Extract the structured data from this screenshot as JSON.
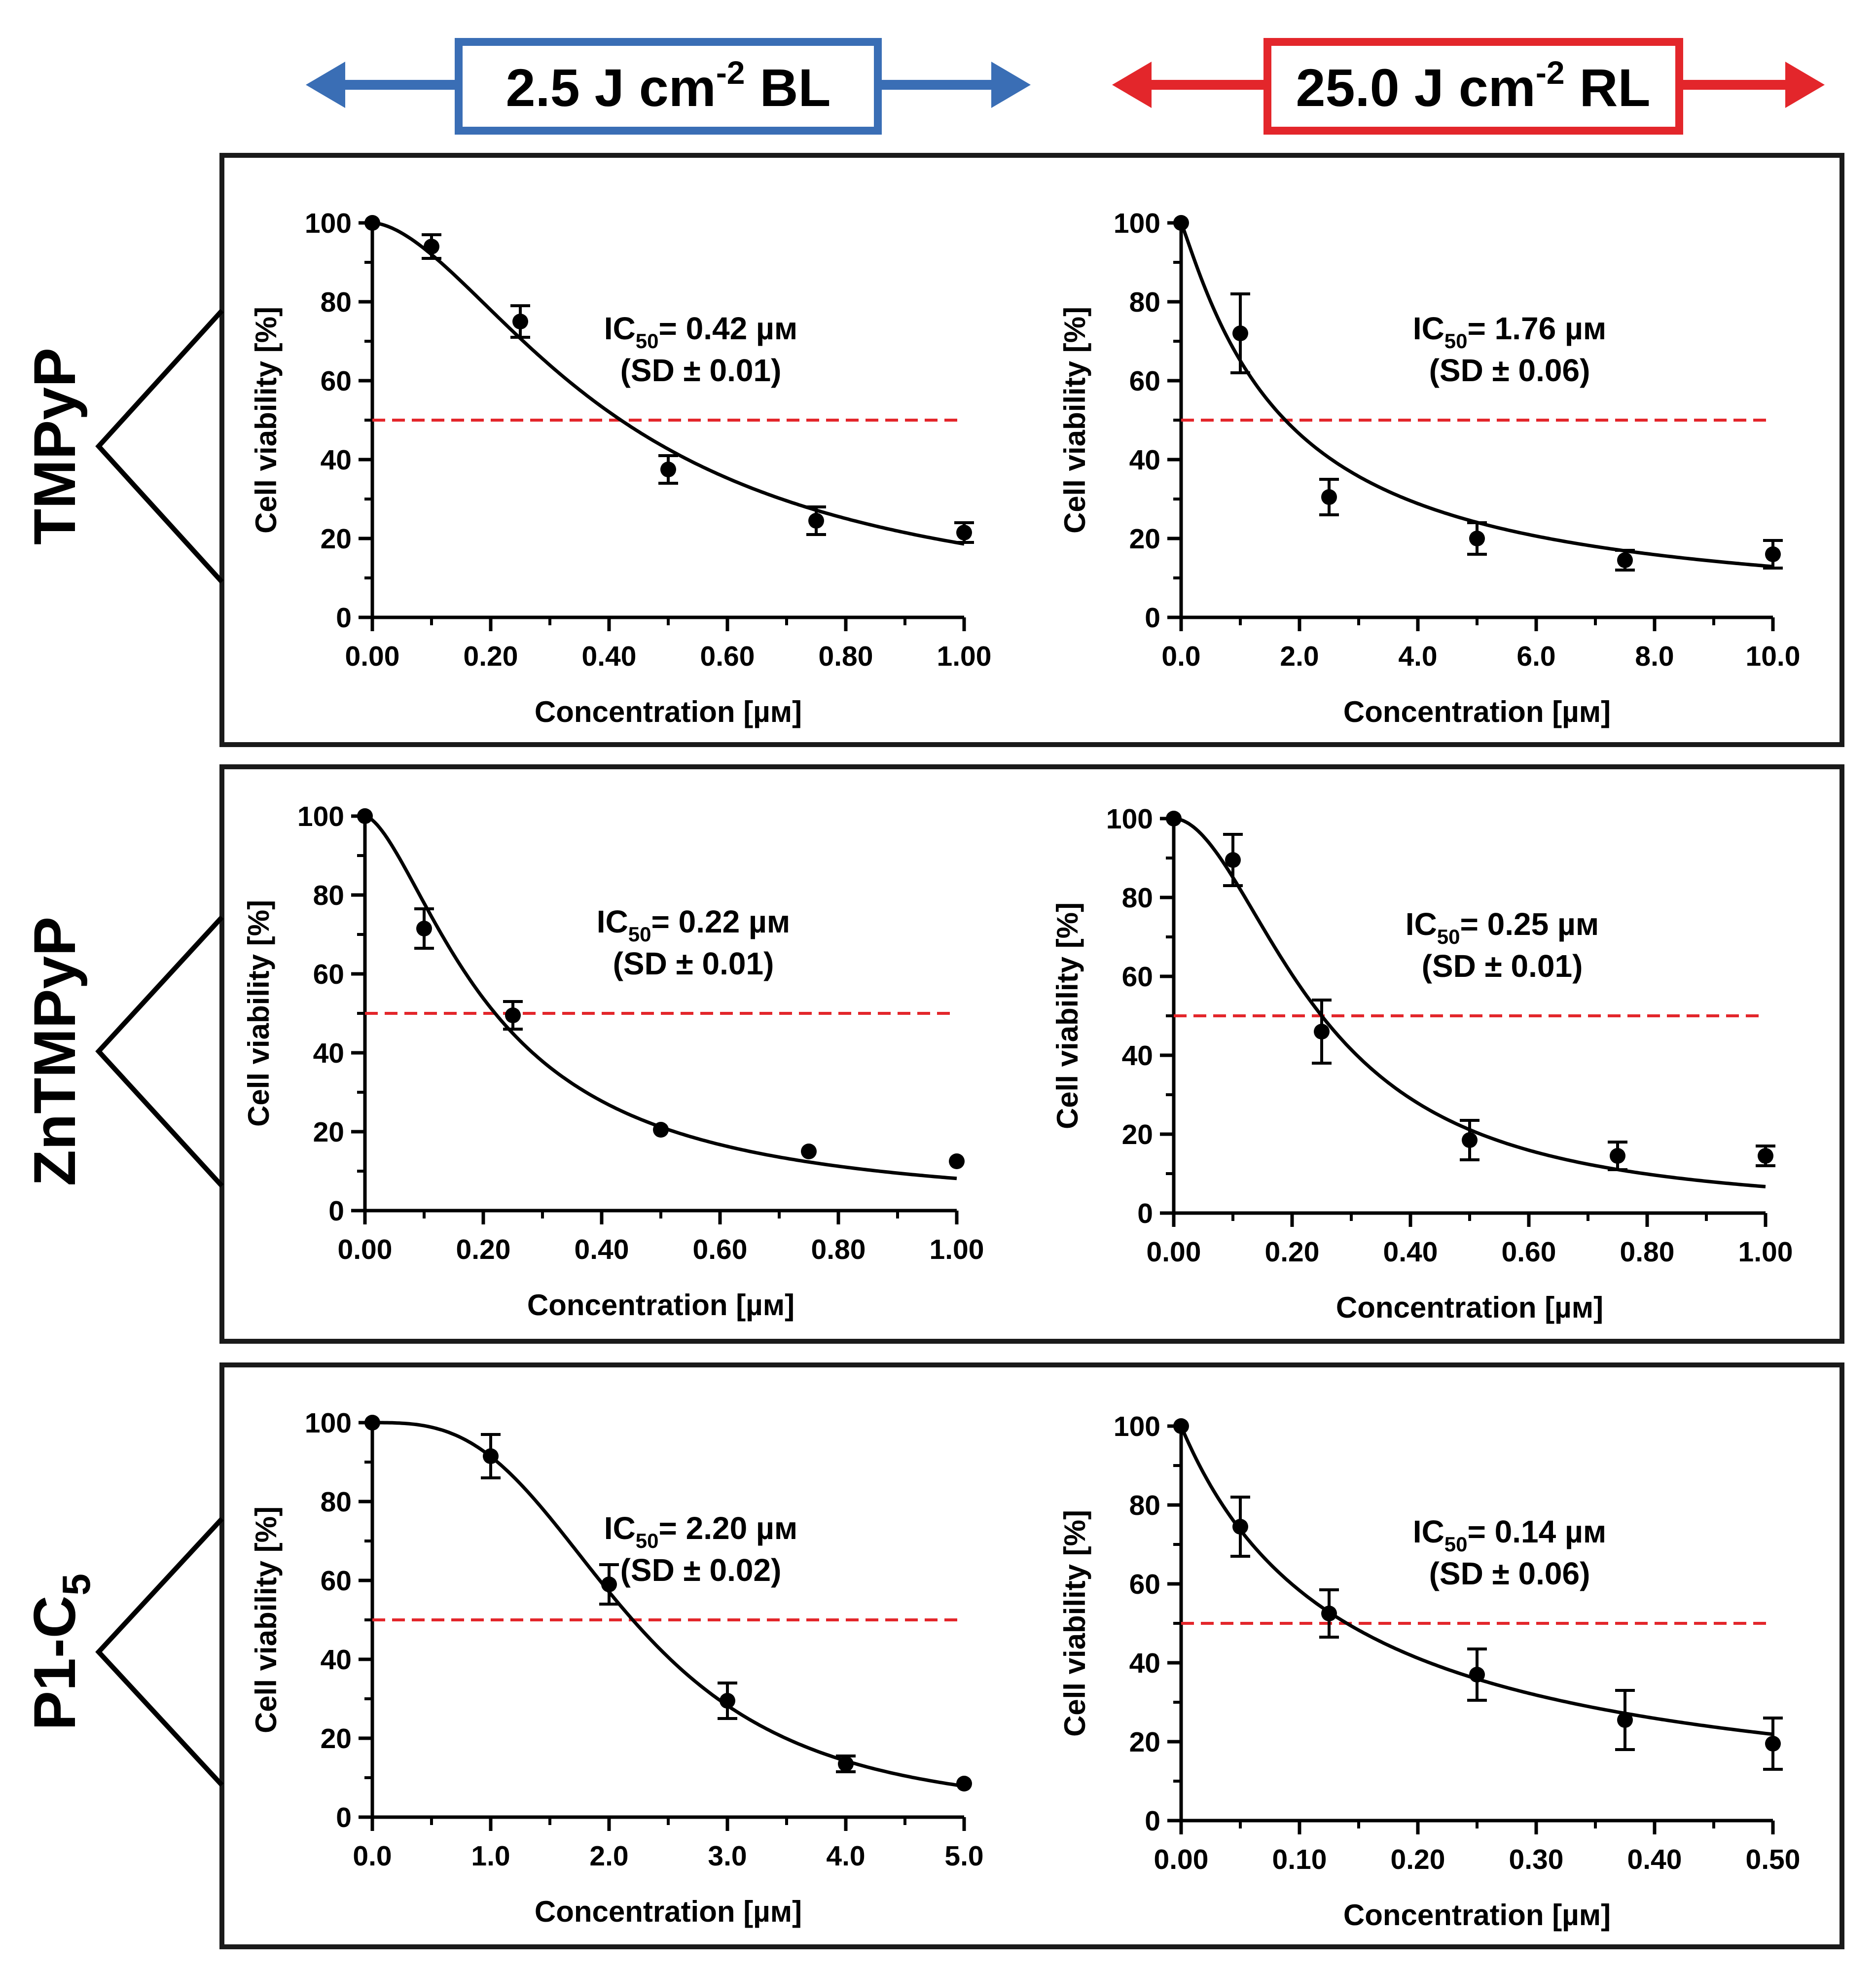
{
  "header": {
    "left_label": "2.5 J cm",
    "left_sup": "-2",
    "left_suffix": " BL",
    "right_label": "25.0 J cm",
    "right_sup": "-2",
    "right_suffix": " RL",
    "left_color": "#3a6eb5",
    "right_color": "#e3262b"
  },
  "rows": [
    {
      "compound": "TMPyP",
      "compound_sub": ""
    },
    {
      "compound": "ZnTMPyP",
      "compound_sub": ""
    },
    {
      "compound": "P1-C",
      "compound_sub": "5"
    }
  ],
  "colors": {
    "threshold": "#e3262b",
    "data": "#000000"
  },
  "chart_data": [
    {
      "type": "scatter",
      "row": 0,
      "col": 0,
      "xlabel": "Concentration [µм]",
      "ylabel": "Cell viability [%]",
      "xlim": [
        0,
        1
      ],
      "ylim": [
        0,
        100
      ],
      "xticks": [
        0,
        0.2,
        0.4,
        0.6,
        0.8,
        1.0
      ],
      "xtick_labels": [
        "0.00",
        "0.20",
        "0.40",
        "0.60",
        "0.80",
        "1.00"
      ],
      "yticks": [
        0,
        20,
        40,
        60,
        80,
        100
      ],
      "ytick_labels": [
        "0",
        "20",
        "40",
        "60",
        "80",
        "100"
      ],
      "x": [
        0,
        0.1,
        0.25,
        0.5,
        0.75,
        1.0
      ],
      "y": [
        100,
        94,
        75,
        37.5,
        24.5,
        21.5
      ],
      "err": [
        0,
        3,
        4,
        3.5,
        3.5,
        2.5
      ],
      "fit": {
        "ic50": 0.42,
        "hill": 1.7
      },
      "threshold": 50,
      "ic50_label": "IC",
      "ic50_sub": "50",
      "ic50_value": "= 0.42 µм",
      "sd_text": "(SD ± 0.01)"
    },
    {
      "type": "scatter",
      "row": 0,
      "col": 1,
      "xlabel": "Concentration [µм]",
      "ylabel": "Cell viability [%]",
      "xlim": [
        0,
        10
      ],
      "ylim": [
        0,
        100
      ],
      "xticks": [
        0,
        2,
        4,
        6,
        8,
        10
      ],
      "xtick_labels": [
        "0.0",
        "2.0",
        "4.0",
        "6.0",
        "8.0",
        "10.0"
      ],
      "yticks": [
        0,
        20,
        40,
        60,
        80,
        100
      ],
      "ytick_labels": [
        "0",
        "20",
        "40",
        "60",
        "80",
        "100"
      ],
      "x": [
        0,
        1,
        2.5,
        5,
        7.5,
        10
      ],
      "y": [
        100,
        72,
        30.5,
        20,
        14.5,
        16
      ],
      "err": [
        0,
        10,
        4.5,
        4,
        2.5,
        3.5
      ],
      "fit": {
        "ic50": 1.76,
        "hill": 1.1
      },
      "threshold": 50,
      "ic50_label": "IC",
      "ic50_sub": "50",
      "ic50_value": "= 1.76 µм",
      "sd_text": "(SD ± 0.06)"
    },
    {
      "type": "scatter",
      "row": 1,
      "col": 0,
      "xlabel": "Concentration [µм]",
      "ylabel": "Cell viability [%]",
      "xlim": [
        0,
        1
      ],
      "ylim": [
        0,
        100
      ],
      "xticks": [
        0,
        0.2,
        0.4,
        0.6,
        0.8,
        1.0
      ],
      "xtick_labels": [
        "0.00",
        "0.20",
        "0.40",
        "0.60",
        "0.80",
        "1.00"
      ],
      "yticks": [
        0,
        20,
        40,
        60,
        80,
        100
      ],
      "ytick_labels": [
        "0",
        "20",
        "40",
        "60",
        "80",
        "100"
      ],
      "x": [
        0,
        0.1,
        0.25,
        0.5,
        0.75,
        1.0
      ],
      "y": [
        100,
        71.5,
        49.5,
        20.5,
        15,
        12.5
      ],
      "err": [
        0,
        5,
        3.5,
        0,
        0,
        0
      ],
      "fit": {
        "ic50": 0.22,
        "hill": 1.6
      },
      "threshold": 50,
      "ic50_label": "IC",
      "ic50_sub": "50",
      "ic50_value": "= 0.22 µм",
      "sd_text": "(SD ± 0.01)"
    },
    {
      "type": "scatter",
      "row": 1,
      "col": 1,
      "xlabel": "Concentration [µм]",
      "ylabel": "Cell viability [%]",
      "xlim": [
        0,
        1
      ],
      "ylim": [
        0,
        100
      ],
      "xticks": [
        0,
        0.2,
        0.4,
        0.6,
        0.8,
        1.0
      ],
      "xtick_labels": [
        "0.00",
        "0.20",
        "0.40",
        "0.60",
        "0.80",
        "1.00"
      ],
      "yticks": [
        0,
        20,
        40,
        60,
        80,
        100
      ],
      "ytick_labels": [
        "0",
        "20",
        "40",
        "60",
        "80",
        "100"
      ],
      "x": [
        0,
        0.1,
        0.25,
        0.5,
        0.75,
        1.0
      ],
      "y": [
        100,
        89.5,
        46,
        18.5,
        14.5,
        14.5
      ],
      "err": [
        0,
        6.5,
        8,
        5,
        3.5,
        2.5
      ],
      "fit": {
        "ic50": 0.25,
        "hill": 1.9
      },
      "threshold": 50,
      "ic50_label": "IC",
      "ic50_sub": "50",
      "ic50_value": "= 0.25 µм",
      "sd_text": "(SD ± 0.01)"
    },
    {
      "type": "scatter",
      "row": 2,
      "col": 0,
      "xlabel": "Concentration [µм]",
      "ylabel": "Cell viability [%]",
      "xlim": [
        0,
        5
      ],
      "ylim": [
        0,
        100
      ],
      "xticks": [
        0,
        1,
        2,
        3,
        4,
        5
      ],
      "xtick_labels": [
        "0.0",
        "1.0",
        "2.0",
        "3.0",
        "4.0",
        "5.0"
      ],
      "yticks": [
        0,
        20,
        40,
        60,
        80,
        100
      ],
      "ytick_labels": [
        "0",
        "20",
        "40",
        "60",
        "80",
        "100"
      ],
      "x": [
        0,
        1,
        2,
        3,
        4,
        5
      ],
      "y": [
        100,
        91.5,
        59,
        29.5,
        13.5,
        8.5
      ],
      "err": [
        0,
        5.5,
        5,
        4.5,
        2,
        0
      ],
      "fit": {
        "ic50": 2.2,
        "hill": 3.0
      },
      "threshold": 50,
      "ic50_label": "IC",
      "ic50_sub": "50",
      "ic50_value": "= 2.20 µм",
      "sd_text": "(SD ± 0.02)"
    },
    {
      "type": "scatter",
      "row": 2,
      "col": 1,
      "xlabel": "Concentration [µм]",
      "ylabel": "Cell viability [%]",
      "xlim": [
        0,
        0.5
      ],
      "ylim": [
        0,
        100
      ],
      "xticks": [
        0,
        0.1,
        0.2,
        0.3,
        0.4,
        0.5
      ],
      "xtick_labels": [
        "0.00",
        "0.10",
        "0.20",
        "0.30",
        "0.40",
        "0.50"
      ],
      "yticks": [
        0,
        20,
        40,
        60,
        80,
        100
      ],
      "ytick_labels": [
        "0",
        "20",
        "40",
        "60",
        "80",
        "100"
      ],
      "x": [
        0,
        0.05,
        0.125,
        0.25,
        0.375,
        0.5
      ],
      "y": [
        100,
        74.5,
        52.5,
        37,
        25.5,
        19.5
      ],
      "err": [
        0,
        7.5,
        6,
        6.5,
        7.5,
        6.5
      ],
      "fit": {
        "ic50": 0.14,
        "hill": 1.0
      },
      "threshold": 50,
      "ic50_label": "IC",
      "ic50_sub": "50",
      "ic50_value": "= 0.14 µм",
      "sd_text": "(SD ± 0.06)"
    }
  ]
}
